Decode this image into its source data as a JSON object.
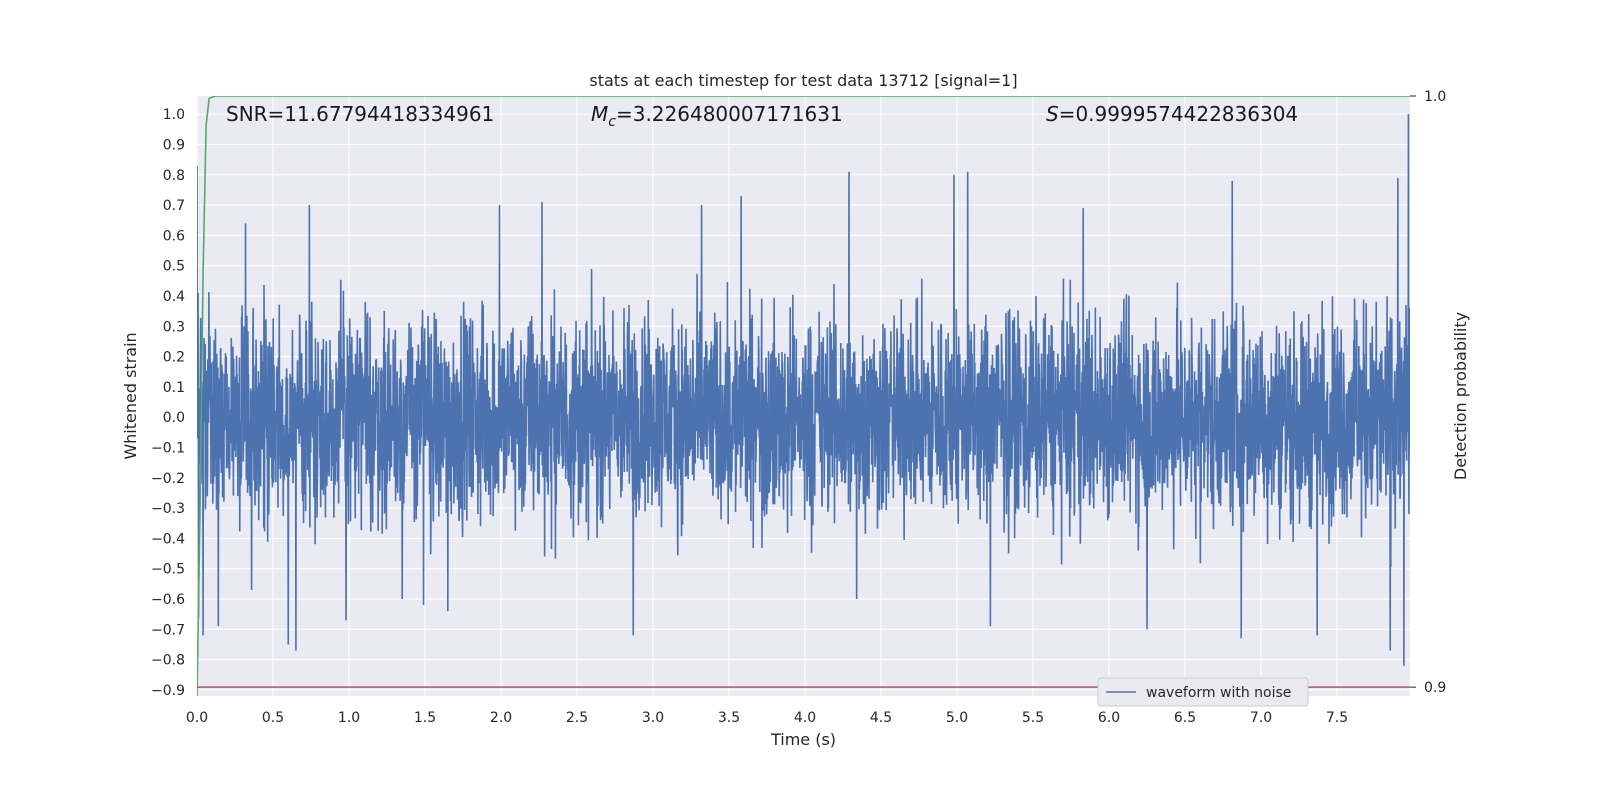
{
  "chart_data": {
    "type": "line",
    "title": "stats at each timestep for test data 13712 [signal=1]",
    "xlabel": "Time (s)",
    "ylabel": "Whitened strain",
    "y2label": "Detection probability",
    "xlim": [
      0.0,
      7.98
    ],
    "ylim": [
      -0.92,
      1.06
    ],
    "y2lim": [
      0.8985,
      1.0
    ],
    "xticks": [
      "0.0",
      "0.5",
      "1.0",
      "1.5",
      "2.0",
      "2.5",
      "3.0",
      "3.5",
      "4.0",
      "4.5",
      "5.0",
      "5.5",
      "6.0",
      "6.5",
      "7.0",
      "7.5"
    ],
    "yticks": [
      "1.0",
      "0.9",
      "0.8",
      "0.7",
      "0.6",
      "0.5",
      "0.4",
      "0.3",
      "0.2",
      "0.1",
      "0.0",
      "−0.1",
      "−0.2",
      "−0.3",
      "−0.4",
      "−0.5",
      "−0.6",
      "−0.7",
      "−0.8",
      "−0.9"
    ],
    "y2ticks": [
      "1.0",
      "0.9"
    ],
    "grid": true,
    "legend_position": "lower-right",
    "annotations": {
      "snr": "SNR=11.67794418334961",
      "mc_symbol": "M",
      "mc_sub": "c",
      "mc_value": "=3.226480007171631",
      "s_symbol": "S",
      "s_value": "=0.9999574422836304"
    },
    "series": [
      {
        "name": "waveform with noise",
        "axis": "left",
        "color": "#4c72b0",
        "noise_envelope": [
          0.45,
          0.55
        ],
        "spikes": [
          [
            0.0,
            0.83
          ],
          [
            0.01,
            -0.66
          ],
          [
            0.04,
            -0.72
          ],
          [
            0.14,
            -0.69
          ],
          [
            0.32,
            0.64
          ],
          [
            0.36,
            -0.57
          ],
          [
            0.6,
            -0.75
          ],
          [
            0.65,
            -0.77
          ],
          [
            0.74,
            0.7
          ],
          [
            0.98,
            -0.67
          ],
          [
            1.35,
            -0.6
          ],
          [
            1.49,
            -0.62
          ],
          [
            1.65,
            -0.64
          ],
          [
            1.99,
            0.7
          ],
          [
            2.27,
            0.71
          ],
          [
            2.87,
            -0.72
          ],
          [
            3.32,
            0.7
          ],
          [
            3.58,
            0.73
          ],
          [
            4.29,
            0.81
          ],
          [
            4.34,
            -0.6
          ],
          [
            4.98,
            0.8
          ],
          [
            5.07,
            0.81
          ],
          [
            5.22,
            -0.69
          ],
          [
            5.83,
            0.69
          ],
          [
            6.25,
            -0.7
          ],
          [
            6.81,
            0.78
          ],
          [
            6.87,
            -0.73
          ],
          [
            7.37,
            -0.72
          ],
          [
            7.85,
            -0.77
          ],
          [
            7.9,
            0.79
          ],
          [
            7.94,
            -0.82
          ],
          [
            7.97,
            1.0
          ]
        ]
      },
      {
        "name": "",
        "axis": "right",
        "color": "#55a868",
        "x": [
          0.0,
          0.02,
          0.04,
          0.06,
          0.08,
          0.12,
          0.5,
          2.0,
          4.0,
          6.0,
          7.98
        ],
        "y": [
          0.8985,
          0.93,
          0.97,
          0.995,
          0.9996,
          1.0,
          1.0,
          1.0,
          1.0,
          1.0,
          1.0
        ]
      },
      {
        "name": "",
        "axis": "right",
        "color": "#c44e52",
        "x": [
          0.0,
          7.98
        ],
        "y": [
          0.9,
          0.9
        ]
      }
    ],
    "colors": {
      "plot_bg": "#eaeaf2",
      "grid": "#ffffff",
      "waveform": "#4c72b0",
      "probability": "#55a868",
      "threshold": "#c44e52"
    }
  }
}
